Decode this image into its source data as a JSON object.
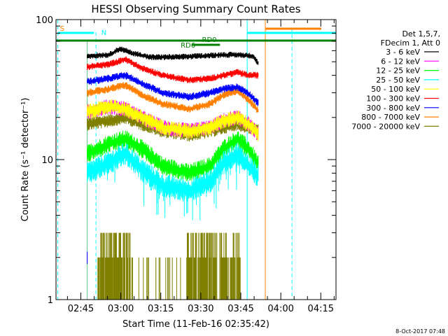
{
  "chart_data": {
    "type": "line",
    "title": "HESSI Observing Summary Count Rates",
    "xlabel": "Start Time (11-Feb-16 02:35:42)",
    "ylabel": "Count Rate (s⁻¹ detector⁻¹)",
    "yscale": "log",
    "ylim": [
      1,
      100
    ],
    "xlim_minutes_after_0235": [
      0,
      105
    ],
    "y_ticks": [
      "1",
      "10",
      "100"
    ],
    "x_ticks": [
      {
        "label": "02:45",
        "minutes": 9.3
      },
      {
        "label": "03:00",
        "minutes": 24.3
      },
      {
        "label": "03:15",
        "minutes": 39.3
      },
      {
        "label": "03:30",
        "minutes": 54.3
      },
      {
        "label": "03:45",
        "minutes": 69.3
      },
      {
        "label": "04:00",
        "minutes": 84.3
      },
      {
        "label": "04:15",
        "minutes": 99.3
      }
    ],
    "legend": {
      "placement": "right",
      "header": [
        "Det 1,5,7,",
        "FDecim 1, Att 0"
      ]
    },
    "series": [
      {
        "name": "3 - 6 keV",
        "color": "#000000",
        "x": [
          12,
          20,
          24,
          28,
          35,
          45,
          55,
          62,
          68,
          74,
          76
        ],
        "y": [
          55,
          56,
          62,
          58,
          54,
          54,
          55,
          56,
          56,
          55,
          48
        ]
      },
      {
        "name": "6 - 12 keV",
        "color": "#ff00ff",
        "x": [
          12,
          20,
          26,
          32,
          40,
          50,
          58,
          63,
          68,
          72,
          76
        ],
        "y": [
          22,
          24,
          23,
          20,
          17,
          16,
          17,
          19,
          20,
          18,
          15
        ]
      },
      {
        "name": "12 - 25 keV",
        "color": "#00ff00",
        "x": [
          12,
          20,
          26,
          32,
          40,
          50,
          58,
          63,
          68,
          72,
          76
        ],
        "y": [
          11,
          13,
          14,
          12,
          9,
          8,
          9,
          12,
          14,
          12,
          9
        ]
      },
      {
        "name": "25 - 50 keV",
        "color": "#00ffff",
        "x": [
          12,
          20,
          26,
          32,
          40,
          50,
          58,
          63,
          68,
          72,
          76
        ],
        "y": [
          8,
          9.5,
          11,
          8.5,
          6.5,
          6,
          7,
          9.5,
          11,
          9,
          7.5
        ]
      },
      {
        "name": "50 - 100 keV",
        "color": "#ffff00",
        "x": [
          12,
          20,
          26,
          32,
          40,
          50,
          58,
          63,
          68,
          72,
          76
        ],
        "y": [
          22,
          24,
          23,
          20,
          17,
          16,
          17,
          19,
          20,
          18,
          15
        ]
      },
      {
        "name": "100 - 300 keV",
        "color": "#ff0000",
        "x": [
          12,
          20,
          26,
          32,
          40,
          50,
          58,
          63,
          68,
          72,
          76
        ],
        "y": [
          46,
          48,
          52,
          45,
          40,
          37,
          38,
          40,
          42,
          40,
          40
        ]
      },
      {
        "name": "300 - 800 keV",
        "color": "#0000ff",
        "x": [
          12,
          20,
          26,
          32,
          40,
          50,
          58,
          63,
          68,
          72,
          76
        ],
        "y": [
          36,
          38,
          40,
          35,
          30,
          28,
          30,
          32,
          33,
          30,
          25
        ]
      },
      {
        "name": "800 - 7000 keV",
        "color": "#ff8000",
        "x": [
          12,
          20,
          26,
          32,
          40,
          50,
          58,
          63,
          68,
          72,
          76
        ],
        "y": [
          30,
          32,
          34,
          29,
          25,
          23,
          25,
          29,
          31,
          27,
          22
        ]
      },
      {
        "name": "7000 - 20000 keV",
        "color": "#808000",
        "x": [
          12,
          20,
          26,
          32,
          40,
          50,
          58,
          63,
          68,
          72,
          76
        ],
        "y": [
          18,
          19,
          20,
          18,
          16,
          15,
          16,
          17,
          18,
          17,
          16
        ]
      }
    ],
    "flags": [
      {
        "label": "S",
        "color": "#ff8000"
      },
      {
        "label": "N",
        "color": "#00ffff"
      },
      {
        "label": "RD0",
        "color": "#008000"
      },
      {
        "label": "RD6",
        "color": "#008000"
      }
    ]
  },
  "timestamp": "8-Oct-2017 07:48"
}
